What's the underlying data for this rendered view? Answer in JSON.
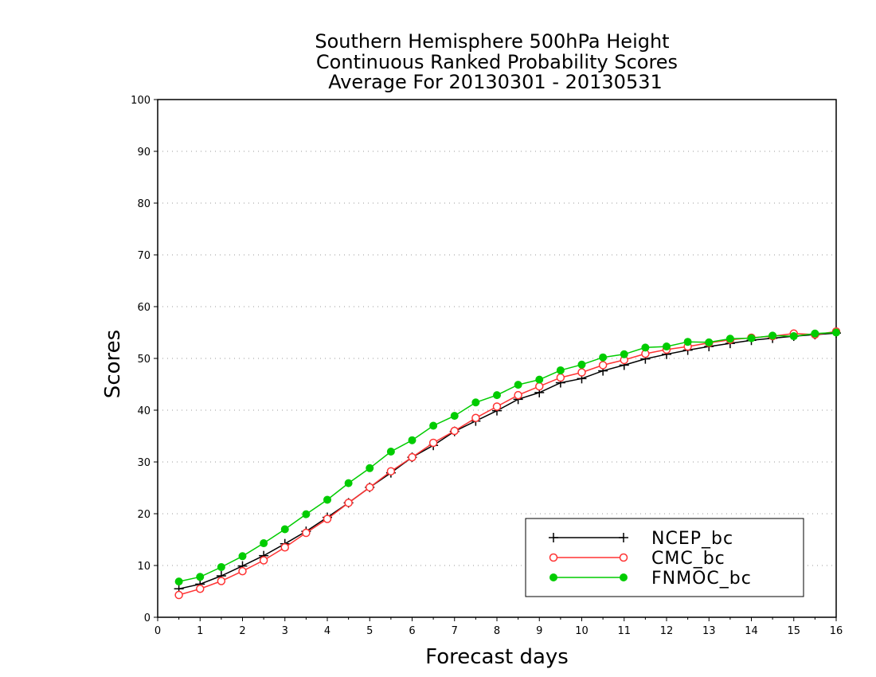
{
  "chart_data": {
    "type": "line",
    "title_lines": [
      "Southern Hemisphere 500hPa Height",
      "Continuous Ranked Probability Scores",
      "Average For 20130301 - 20130531"
    ],
    "xlabel": "Forecast days",
    "ylabel": "Scores",
    "xlim": [
      0,
      16
    ],
    "ylim": [
      0,
      100
    ],
    "x_ticks": [
      0,
      1,
      2,
      3,
      4,
      5,
      6,
      7,
      8,
      9,
      10,
      11,
      12,
      13,
      14,
      15,
      16
    ],
    "y_ticks": [
      0,
      10,
      20,
      30,
      40,
      50,
      60,
      70,
      80,
      90,
      100
    ],
    "grid": "horizontal dotted",
    "legend_position": "bottom-right",
    "x": [
      0.5,
      1.0,
      1.5,
      2.0,
      2.5,
      3.0,
      3.5,
      4.0,
      4.5,
      5.0,
      5.5,
      6.0,
      6.5,
      7.0,
      7.5,
      8.0,
      8.5,
      9.0,
      9.5,
      10.0,
      10.5,
      11.0,
      11.5,
      12.0,
      12.5,
      13.0,
      13.5,
      14.0,
      14.5,
      15.0,
      15.5,
      16.0
    ],
    "series": [
      {
        "name": "NCEP_bc",
        "color": "#000000",
        "marker": "plus",
        "values": [
          5.5,
          6.4,
          8.0,
          9.9,
          11.9,
          14.2,
          16.6,
          19.3,
          22.1,
          25.1,
          27.9,
          30.9,
          33.2,
          35.9,
          37.9,
          39.9,
          42.1,
          43.4,
          45.3,
          46.1,
          47.6,
          48.7,
          49.9,
          50.8,
          51.6,
          52.3,
          52.9,
          53.5,
          53.9,
          54.3,
          54.6,
          54.9
        ]
      },
      {
        "name": "CMC_bc",
        "color": "#ff3333",
        "marker": "open-circle",
        "values": [
          4.3,
          5.5,
          7.0,
          8.9,
          11.0,
          13.5,
          16.3,
          19.0,
          22.1,
          25.1,
          28.2,
          30.9,
          33.7,
          36.0,
          38.5,
          40.7,
          42.9,
          44.6,
          46.3,
          47.3,
          48.7,
          49.7,
          50.9,
          51.7,
          52.3,
          53.0,
          53.6,
          54.0,
          54.3,
          54.8,
          54.6,
          55.2
        ]
      },
      {
        "name": "FNMOC_bc",
        "color": "#00cc00",
        "marker": "filled-circle",
        "values": [
          6.9,
          7.8,
          9.7,
          11.8,
          14.3,
          17.0,
          19.9,
          22.7,
          25.9,
          28.8,
          32.0,
          34.2,
          37.0,
          38.9,
          41.5,
          42.9,
          44.9,
          45.9,
          47.7,
          48.8,
          50.2,
          50.8,
          52.1,
          52.3,
          53.2,
          53.1,
          53.8,
          53.9,
          54.4,
          54.3,
          54.8,
          55.0
        ]
      }
    ]
  }
}
